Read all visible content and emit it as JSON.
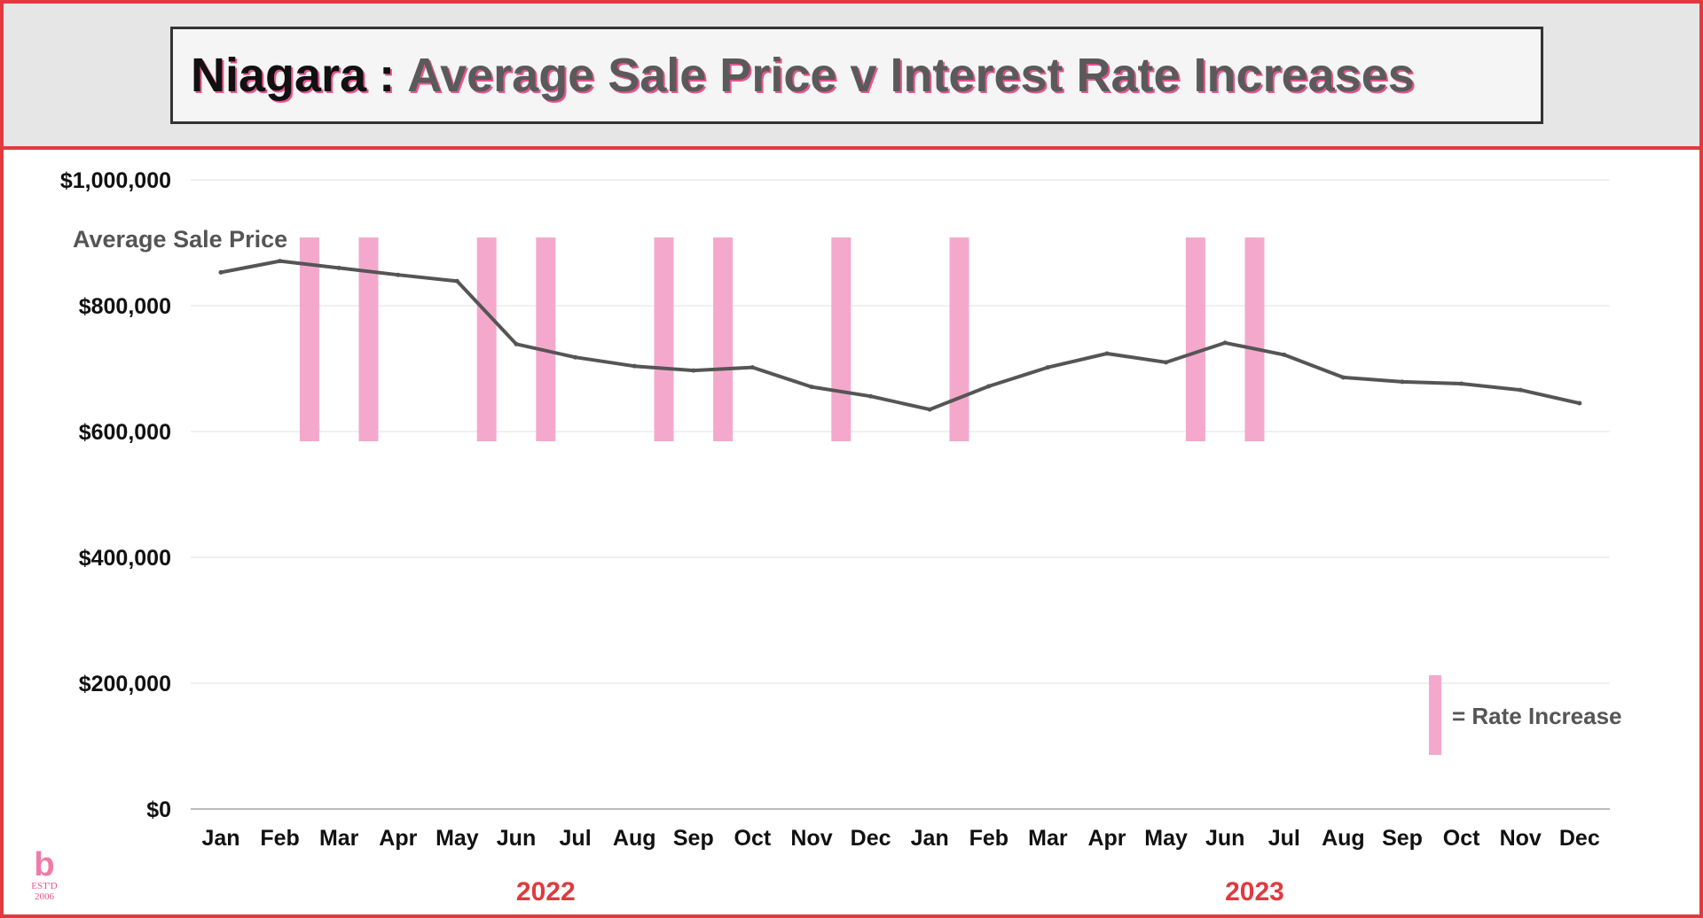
{
  "header": {
    "region": "Niagara",
    "separator": ":",
    "title": "Average Sale Price v Interest Rate Increases"
  },
  "chart_data": {
    "type": "line",
    "title": "Niagara : Average Sale Price v Interest Rate Increases",
    "categories": [
      "Jan",
      "Feb",
      "Mar",
      "Apr",
      "May",
      "Jun",
      "Jul",
      "Aug",
      "Sep",
      "Oct",
      "Nov",
      "Dec",
      "Jan",
      "Feb",
      "Mar",
      "Apr",
      "May",
      "Jun",
      "Jul",
      "Aug",
      "Sep",
      "Oct",
      "Nov",
      "Dec"
    ],
    "year_groups": [
      {
        "label": "2022",
        "months": [
          "Jan",
          "Feb",
          "Mar",
          "Apr",
          "May",
          "Jun",
          "Jul",
          "Aug",
          "Sep",
          "Oct",
          "Nov",
          "Dec"
        ]
      },
      {
        "label": "2023",
        "months": [
          "Jan",
          "Feb",
          "Mar",
          "Apr",
          "May",
          "Jun",
          "Jul",
          "Aug",
          "Sep",
          "Oct",
          "Nov",
          "Dec"
        ]
      }
    ],
    "series": [
      {
        "name": "Average Sale Price",
        "color": "#555555",
        "values": [
          853000,
          871000,
          860000,
          849000,
          839000,
          739000,
          718000,
          704000,
          697000,
          702000,
          671000,
          656000,
          635000,
          672000,
          702000,
          724000,
          710000,
          741000,
          722000,
          686000,
          679000,
          676000,
          666000,
          645000
        ]
      }
    ],
    "rate_increases": [
      {
        "between": [
          "Feb 2022",
          "Mar 2022"
        ]
      },
      {
        "between": [
          "Mar 2022",
          "Apr 2022"
        ]
      },
      {
        "between": [
          "May 2022",
          "Jun 2022"
        ]
      },
      {
        "between": [
          "Jun 2022",
          "Jul 2022"
        ]
      },
      {
        "between": [
          "Aug 2022",
          "Sep 2022"
        ]
      },
      {
        "between": [
          "Sep 2022",
          "Oct 2022"
        ]
      },
      {
        "between": [
          "Nov 2022",
          "Dec 2022"
        ]
      },
      {
        "between": [
          "Jan 2023",
          "Feb 2023"
        ]
      },
      {
        "between": [
          "May 2023",
          "Jun 2023"
        ]
      },
      {
        "between": [
          "Jun 2023",
          "Jul 2023"
        ]
      }
    ],
    "rate_bar_color": "#f4a9cc",
    "y_ticks": [
      "$1,000,000",
      "$800,000",
      "$600,000",
      "$400,000",
      "$200,000",
      "$0"
    ],
    "y_tick_values": [
      1000000,
      800000,
      600000,
      400000,
      200000,
      0
    ],
    "ylim": [
      0,
      1000000
    ],
    "grid": true,
    "legend": {
      "label": "= Rate Increase",
      "placement": "bottom-right"
    },
    "accent_color": "#e03a3e"
  },
  "logo": {
    "mark": "b",
    "subtitle": "EST'D 2006"
  }
}
